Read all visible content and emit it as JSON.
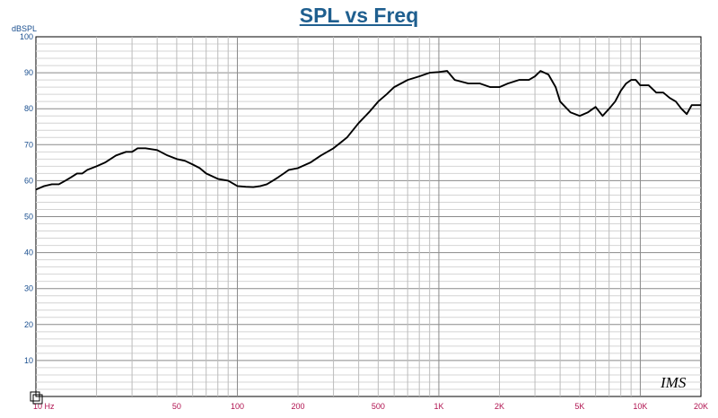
{
  "title": "SPL vs Freq",
  "logo_text": "IMS",
  "chart_data": {
    "type": "line",
    "title": "SPL vs Freq",
    "xlabel": "",
    "ylabel": "dBSPL",
    "xscale": "log",
    "xlim": [
      10,
      20000
    ],
    "ylim": [
      0,
      100
    ],
    "grid": true,
    "y_ticks": [
      100,
      90,
      80,
      70,
      60,
      50,
      40,
      30,
      20,
      10
    ],
    "y_tick_labels": [
      "100",
      "90",
      "80",
      "70",
      "60",
      "50",
      "40",
      "30",
      "20",
      "10"
    ],
    "x_ticks": [
      10,
      50,
      100,
      200,
      500,
      1000,
      2000,
      5000,
      10000,
      20000
    ],
    "x_tick_labels": [
      "10 Hz",
      "50",
      "100",
      "200",
      "500",
      "1K",
      "2K",
      "5K",
      "10K",
      "20K"
    ],
    "series": [
      {
        "color": "#000000",
        "x": [
          10,
          11,
          12,
          13,
          14,
          15,
          16,
          17,
          18,
          20,
          22,
          25,
          28,
          30,
          32,
          35,
          40,
          45,
          50,
          55,
          60,
          65,
          70,
          80,
          90,
          100,
          110,
          120,
          130,
          140,
          150,
          160,
          170,
          180,
          200,
          230,
          260,
          300,
          350,
          400,
          450,
          500,
          550,
          600,
          700,
          800,
          900,
          1000,
          1100,
          1200,
          1400,
          1600,
          1800,
          2000,
          2200,
          2500,
          2800,
          3000,
          3200,
          3500,
          3800,
          4000,
          4500,
          5000,
          5500,
          6000,
          6500,
          7000,
          7500,
          8000,
          8500,
          9000,
          9500,
          10000,
          11000,
          12000,
          13000,
          14000,
          15000,
          16000,
          17000,
          18000,
          20000
        ],
        "values": [
          57.5,
          58.5,
          59,
          59,
          60,
          61,
          62,
          62,
          63,
          64,
          65,
          67,
          68,
          68,
          69,
          69,
          68.5,
          67,
          66,
          65.5,
          64.5,
          63.5,
          62,
          60.5,
          60,
          58.5,
          58.3,
          58.2,
          58.5,
          59,
          60,
          61,
          62,
          63,
          63.5,
          65,
          67,
          69,
          72,
          76,
          79,
          82,
          84,
          86,
          88,
          89,
          90,
          90.2,
          90.5,
          88,
          87,
          87,
          86,
          86,
          87,
          88,
          88,
          89,
          90.5,
          89.5,
          86,
          82,
          79,
          78,
          79,
          80.5,
          78,
          80,
          82,
          85,
          87,
          88,
          88,
          86.5,
          86.5,
          84.5,
          84.5,
          83,
          82,
          80,
          78.5,
          81,
          81
        ]
      }
    ]
  }
}
